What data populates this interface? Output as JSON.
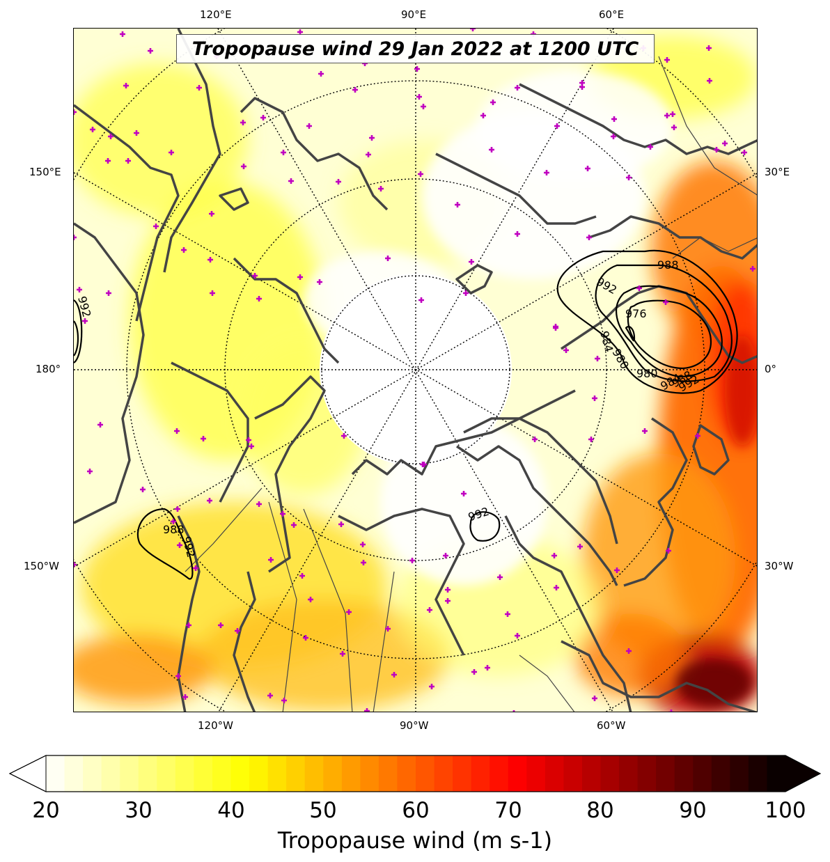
{
  "title": "Tropopause wind 29 Jan 2022 at 1200 UTC",
  "lon_labels": {
    "top": [
      "120°E",
      "90°E",
      "60°E"
    ],
    "bottom": [
      "120°W",
      "90°W",
      "60°W"
    ],
    "left": [
      "150°E",
      "180°",
      "150°W"
    ],
    "right": [
      "30°E",
      "0°",
      "30°W"
    ]
  },
  "isobar_labels": [
    "992",
    "988",
    "984",
    "980",
    "976",
    "980",
    "984",
    "988",
    "992",
    "992",
    "988",
    "992",
    "992"
  ],
  "colorbar": {
    "label": "Tropopause wind (m s-1)",
    "ticks": [
      "20",
      "30",
      "40",
      "50",
      "60",
      "70",
      "80",
      "90",
      "100"
    ],
    "min": 20,
    "max": 100,
    "extend": "both"
  },
  "colors": {
    "coastline": "#444444",
    "station_marker": "#c000c0",
    "contour": "#000000"
  }
}
